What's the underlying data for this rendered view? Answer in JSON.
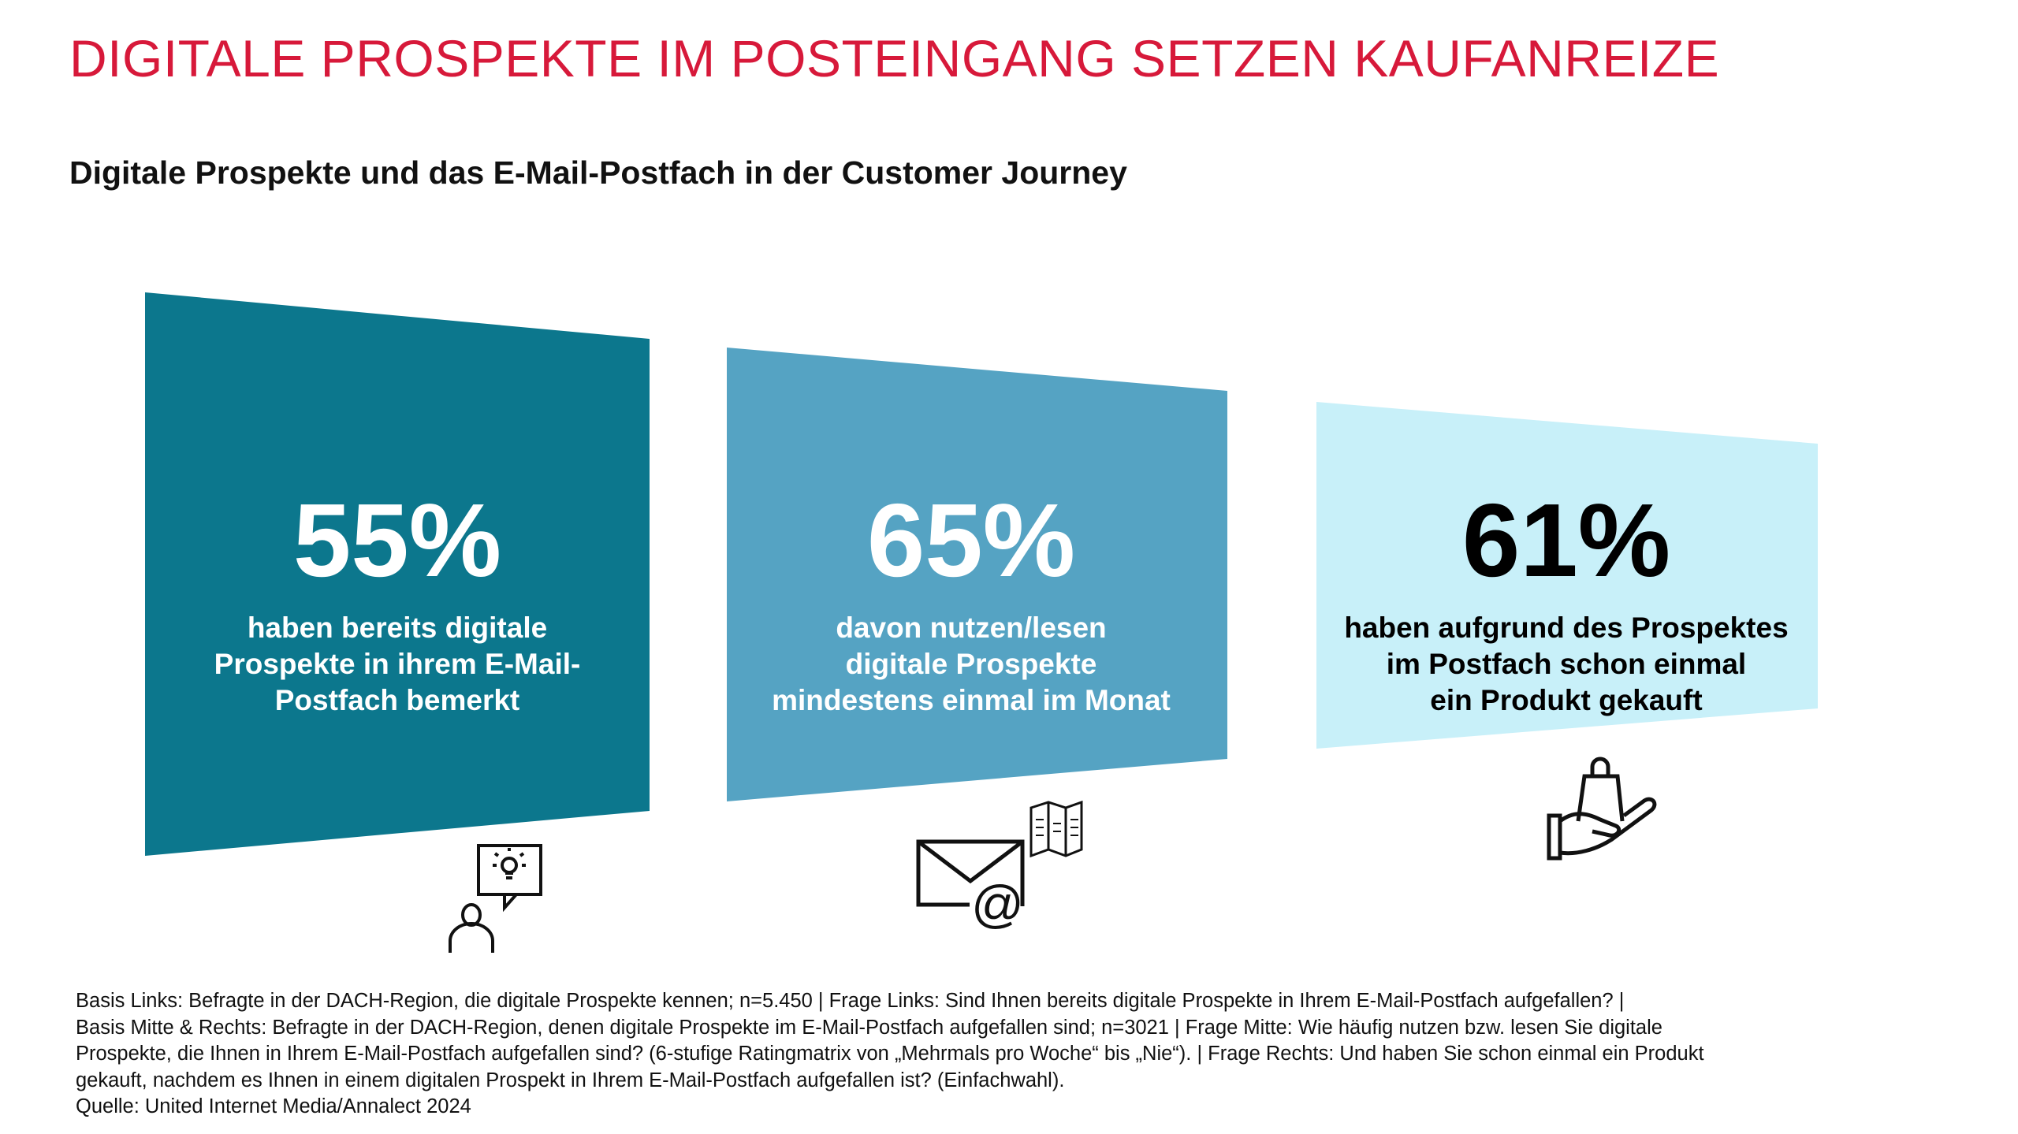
{
  "header": {
    "title": "DIGITALE PROSPEKTE IM POSTEINGANG SETZEN KAUFANREIZE",
    "subtitle": "Digitale Prospekte und das E-Mail-Postfach in der Customer Journey"
  },
  "colors": {
    "title": "#d7193a",
    "panel_left": "#0c778d",
    "panel_middle": "#55a3c3",
    "panel_right": "#c8f0f9"
  },
  "panels": [
    {
      "value": "55%",
      "lines": [
        "haben bereits digitale",
        "Prospekte in ihrem E-Mail-",
        "Postfach bemerkt"
      ],
      "icon": "person-idea-icon"
    },
    {
      "value": "65%",
      "lines": [
        "davon nutzen/lesen",
        "digitale Prospekte",
        "mindestens einmal im Monat"
      ],
      "icon": "email-brochure-icon"
    },
    {
      "value": "61%",
      "lines": [
        "haben aufgrund des Prospektes",
        "im Postfach schon einmal",
        "ein Produkt gekauft"
      ],
      "icon": "hand-shopping-bag-icon"
    }
  ],
  "footnote": [
    "Basis Links: Befragte in der DACH-Region, die digitale Prospekte kennen; n=5.450 | Frage Links: Sind Ihnen bereits digitale Prospekte in Ihrem E-Mail-Postfach aufgefallen? |",
    "Basis Mitte & Rechts: Befragte in der DACH-Region, denen digitale Prospekte im E-Mail-Postfach aufgefallen sind; n=3021 | Frage Mitte: Wie häufig nutzen bzw. lesen Sie digitale",
    "Prospekte, die Ihnen in Ihrem E-Mail-Postfach aufgefallen sind? (6-stufige Ratingmatrix von „Mehrmals pro Woche“ bis „Nie“). | Frage Rechts: Und haben Sie schon einmal ein Produkt",
    "gekauft, nachdem es Ihnen in einem digitalen Prospekt in Ihrem E-Mail-Postfach aufgefallen ist? (Einfachwahl).",
    "Quelle: United Internet Media/Annalect 2024"
  ]
}
